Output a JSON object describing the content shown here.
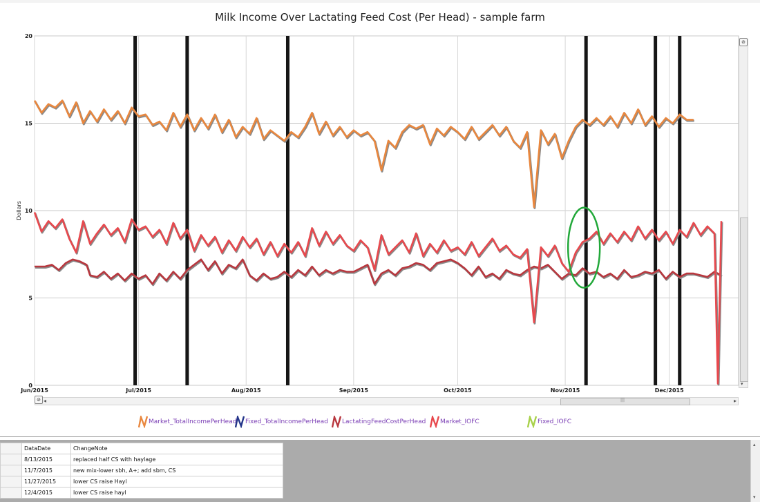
{
  "chart_data": {
    "type": "line",
    "title": "Milk Income Over Lactating Feed Cost (Per Head) - sample farm",
    "ylabel": "Dollars",
    "ylim": [
      0,
      20
    ],
    "yticks": [
      "0",
      "5",
      "10",
      "15",
      "20"
    ],
    "xlabels": [
      {
        "label": "Jun/2015",
        "day": 0
      },
      {
        "label": "Jul/2015",
        "day": 30
      },
      {
        "label": "Aug/2015",
        "day": 61
      },
      {
        "label": "Sep/2015",
        "day": 92
      },
      {
        "label": "Oct/2015",
        "day": 122
      },
      {
        "label": "Nov/2015",
        "day": 153
      },
      {
        "label": "Dec/2015",
        "day": 183
      }
    ],
    "x_end_day": 198,
    "grid": true,
    "change_markers": [
      "6/30/2015",
      "7/15/2015",
      "8/13/2015",
      "11/7/2015",
      "11/27/2015",
      "12/4/2015"
    ],
    "annotation": {
      "type": "ellipse",
      "color": "#22a83a",
      "center_day": 158,
      "center_value": 7.8,
      "note": "green circle around 11/7/2015"
    },
    "series": [
      {
        "name": "Market_TotalIncomePerHead",
        "color": "#e9873e",
        "shadow": "#8a8a8a",
        "points": [
          [
            0,
            16.3
          ],
          [
            2,
            15.6
          ],
          [
            4,
            16.1
          ],
          [
            6,
            15.9
          ],
          [
            8,
            16.3
          ],
          [
            10,
            15.4
          ],
          [
            12,
            16.2
          ],
          [
            14,
            15.0
          ],
          [
            16,
            15.7
          ],
          [
            18,
            15.1
          ],
          [
            20,
            15.8
          ],
          [
            22,
            15.2
          ],
          [
            24,
            15.7
          ],
          [
            26,
            15.0
          ],
          [
            28,
            15.9
          ],
          [
            30,
            15.4
          ],
          [
            32,
            15.5
          ],
          [
            34,
            14.9
          ],
          [
            36,
            15.1
          ],
          [
            38,
            14.6
          ],
          [
            40,
            15.6
          ],
          [
            42,
            14.8
          ],
          [
            44,
            15.5
          ],
          [
            46,
            14.6
          ],
          [
            48,
            15.3
          ],
          [
            50,
            14.7
          ],
          [
            52,
            15.5
          ],
          [
            54,
            14.5
          ],
          [
            56,
            15.2
          ],
          [
            58,
            14.2
          ],
          [
            60,
            14.8
          ],
          [
            62,
            14.4
          ],
          [
            64,
            15.3
          ],
          [
            66,
            14.1
          ],
          [
            68,
            14.6
          ],
          [
            70,
            14.3
          ],
          [
            72,
            14.0
          ],
          [
            74,
            14.5
          ],
          [
            76,
            14.2
          ],
          [
            78,
            14.8
          ],
          [
            80,
            15.6
          ],
          [
            82,
            14.4
          ],
          [
            84,
            15.1
          ],
          [
            86,
            14.3
          ],
          [
            88,
            14.8
          ],
          [
            90,
            14.2
          ],
          [
            92,
            14.6
          ],
          [
            94,
            14.3
          ],
          [
            96,
            14.5
          ],
          [
            98,
            14.0
          ],
          [
            100,
            12.3
          ],
          [
            102,
            14.0
          ],
          [
            104,
            13.6
          ],
          [
            106,
            14.5
          ],
          [
            108,
            14.9
          ],
          [
            110,
            14.7
          ],
          [
            112,
            14.9
          ],
          [
            114,
            13.8
          ],
          [
            116,
            14.7
          ],
          [
            118,
            14.3
          ],
          [
            120,
            14.8
          ],
          [
            122,
            14.5
          ],
          [
            124,
            14.1
          ],
          [
            126,
            14.8
          ],
          [
            128,
            14.1
          ],
          [
            130,
            14.5
          ],
          [
            132,
            14.9
          ],
          [
            134,
            14.3
          ],
          [
            136,
            14.8
          ],
          [
            138,
            14.0
          ],
          [
            140,
            13.6
          ],
          [
            142,
            14.5
          ],
          [
            144,
            10.2
          ],
          [
            146,
            14.6
          ],
          [
            148,
            13.8
          ],
          [
            150,
            14.4
          ],
          [
            152,
            13.0
          ],
          [
            154,
            14.0
          ],
          [
            156,
            14.8
          ],
          [
            158,
            15.2
          ],
          [
            160,
            14.9
          ],
          [
            162,
            15.3
          ],
          [
            164,
            14.9
          ],
          [
            166,
            15.4
          ],
          [
            168,
            14.8
          ],
          [
            170,
            15.6
          ],
          [
            172,
            15.0
          ],
          [
            174,
            15.8
          ],
          [
            176,
            14.9
          ],
          [
            178,
            15.4
          ],
          [
            180,
            14.8
          ],
          [
            182,
            15.3
          ],
          [
            184,
            15.0
          ],
          [
            186,
            15.5
          ],
          [
            188,
            15.2
          ],
          [
            190,
            15.2
          ]
        ]
      },
      {
        "name": "Fixed_TotalIncomePerHead",
        "color": "#24368a",
        "points": []
      },
      {
        "name": "LactatingFeedCostPerHead",
        "color": "#b8373e",
        "shadow": "#8a8a8a",
        "points": [
          [
            0,
            6.8
          ],
          [
            3,
            6.8
          ],
          [
            5,
            6.9
          ],
          [
            7,
            6.6
          ],
          [
            9,
            7.0
          ],
          [
            11,
            7.2
          ],
          [
            13,
            7.1
          ],
          [
            15,
            6.9
          ],
          [
            16,
            6.3
          ],
          [
            18,
            6.2
          ],
          [
            20,
            6.5
          ],
          [
            22,
            6.1
          ],
          [
            24,
            6.4
          ],
          [
            26,
            6.0
          ],
          [
            28,
            6.4
          ],
          [
            30,
            6.1
          ],
          [
            32,
            6.3
          ],
          [
            34,
            5.8
          ],
          [
            36,
            6.4
          ],
          [
            38,
            6.0
          ],
          [
            40,
            6.5
          ],
          [
            42,
            6.1
          ],
          [
            44,
            6.6
          ],
          [
            46,
            6.9
          ],
          [
            48,
            7.2
          ],
          [
            50,
            6.6
          ],
          [
            52,
            7.1
          ],
          [
            54,
            6.4
          ],
          [
            56,
            6.9
          ],
          [
            58,
            6.7
          ],
          [
            60,
            7.2
          ],
          [
            62,
            6.3
          ],
          [
            64,
            6.0
          ],
          [
            66,
            6.4
          ],
          [
            68,
            6.1
          ],
          [
            70,
            6.2
          ],
          [
            72,
            6.5
          ],
          [
            74,
            6.2
          ],
          [
            76,
            6.6
          ],
          [
            78,
            6.3
          ],
          [
            80,
            6.8
          ],
          [
            82,
            6.3
          ],
          [
            84,
            6.6
          ],
          [
            86,
            6.4
          ],
          [
            88,
            6.6
          ],
          [
            90,
            6.5
          ],
          [
            92,
            6.5
          ],
          [
            94,
            6.7
          ],
          [
            96,
            6.9
          ],
          [
            98,
            5.8
          ],
          [
            100,
            6.4
          ],
          [
            102,
            6.6
          ],
          [
            104,
            6.3
          ],
          [
            106,
            6.7
          ],
          [
            108,
            6.8
          ],
          [
            110,
            7.0
          ],
          [
            112,
            6.9
          ],
          [
            114,
            6.6
          ],
          [
            116,
            7.0
          ],
          [
            118,
            7.1
          ],
          [
            120,
            7.2
          ],
          [
            122,
            7.0
          ],
          [
            124,
            6.7
          ],
          [
            126,
            6.3
          ],
          [
            128,
            6.8
          ],
          [
            130,
            6.2
          ],
          [
            132,
            6.4
          ],
          [
            134,
            6.1
          ],
          [
            136,
            6.6
          ],
          [
            138,
            6.4
          ],
          [
            140,
            6.3
          ],
          [
            142,
            6.6
          ],
          [
            144,
            6.8
          ],
          [
            146,
            6.7
          ],
          [
            148,
            6.9
          ],
          [
            150,
            6.5
          ],
          [
            152,
            6.1
          ],
          [
            154,
            6.4
          ],
          [
            156,
            6.3
          ],
          [
            158,
            6.7
          ],
          [
            160,
            6.4
          ],
          [
            162,
            6.5
          ],
          [
            164,
            6.2
          ],
          [
            166,
            6.4
          ],
          [
            168,
            6.1
          ],
          [
            170,
            6.6
          ],
          [
            172,
            6.2
          ],
          [
            174,
            6.3
          ],
          [
            176,
            6.5
          ],
          [
            178,
            6.4
          ],
          [
            180,
            6.6
          ],
          [
            182,
            6.1
          ],
          [
            184,
            6.5
          ],
          [
            186,
            6.2
          ],
          [
            188,
            6.4
          ],
          [
            190,
            6.4
          ],
          [
            192,
            6.3
          ],
          [
            194,
            6.2
          ],
          [
            196,
            6.5
          ],
          [
            198,
            6.3
          ]
        ]
      },
      {
        "name": "Market_IOFC",
        "color": "#e8484d",
        "shadow": "#8a8a8a",
        "points": [
          [
            0,
            9.9
          ],
          [
            2,
            8.8
          ],
          [
            4,
            9.4
          ],
          [
            6,
            9.0
          ],
          [
            8,
            9.5
          ],
          [
            10,
            8.4
          ],
          [
            12,
            7.6
          ],
          [
            14,
            9.4
          ],
          [
            16,
            8.1
          ],
          [
            18,
            8.7
          ],
          [
            20,
            9.2
          ],
          [
            22,
            8.6
          ],
          [
            24,
            9.0
          ],
          [
            26,
            8.2
          ],
          [
            28,
            9.5
          ],
          [
            30,
            8.9
          ],
          [
            32,
            9.1
          ],
          [
            34,
            8.5
          ],
          [
            36,
            8.9
          ],
          [
            38,
            8.1
          ],
          [
            40,
            9.3
          ],
          [
            42,
            8.4
          ],
          [
            44,
            8.9
          ],
          [
            46,
            7.7
          ],
          [
            48,
            8.6
          ],
          [
            50,
            8.0
          ],
          [
            52,
            8.5
          ],
          [
            54,
            7.6
          ],
          [
            56,
            8.3
          ],
          [
            58,
            7.7
          ],
          [
            60,
            8.5
          ],
          [
            62,
            7.9
          ],
          [
            64,
            8.4
          ],
          [
            66,
            7.5
          ],
          [
            68,
            8.2
          ],
          [
            70,
            7.4
          ],
          [
            72,
            8.1
          ],
          [
            74,
            7.6
          ],
          [
            76,
            8.2
          ],
          [
            78,
            7.4
          ],
          [
            80,
            9.0
          ],
          [
            82,
            8.0
          ],
          [
            84,
            8.8
          ],
          [
            86,
            8.1
          ],
          [
            88,
            8.6
          ],
          [
            90,
            8.0
          ],
          [
            92,
            7.7
          ],
          [
            94,
            8.3
          ],
          [
            96,
            7.9
          ],
          [
            98,
            6.6
          ],
          [
            100,
            8.6
          ],
          [
            102,
            7.5
          ],
          [
            104,
            7.9
          ],
          [
            106,
            8.3
          ],
          [
            108,
            7.6
          ],
          [
            110,
            8.7
          ],
          [
            112,
            7.4
          ],
          [
            114,
            8.1
          ],
          [
            116,
            7.6
          ],
          [
            118,
            8.3
          ],
          [
            120,
            7.7
          ],
          [
            122,
            7.9
          ],
          [
            124,
            7.5
          ],
          [
            126,
            8.2
          ],
          [
            128,
            7.4
          ],
          [
            130,
            7.9
          ],
          [
            132,
            8.4
          ],
          [
            134,
            7.7
          ],
          [
            136,
            8.0
          ],
          [
            138,
            7.5
          ],
          [
            140,
            7.3
          ],
          [
            142,
            7.8
          ],
          [
            144,
            3.6
          ],
          [
            146,
            7.9
          ],
          [
            148,
            7.4
          ],
          [
            150,
            8.0
          ],
          [
            152,
            7.0
          ],
          [
            154,
            6.5
          ],
          [
            156,
            7.6
          ],
          [
            158,
            8.2
          ],
          [
            160,
            8.4
          ],
          [
            162,
            8.8
          ],
          [
            164,
            8.1
          ],
          [
            166,
            8.7
          ],
          [
            168,
            8.2
          ],
          [
            170,
            8.8
          ],
          [
            172,
            8.3
          ],
          [
            174,
            9.1
          ],
          [
            176,
            8.4
          ],
          [
            178,
            8.9
          ],
          [
            180,
            8.3
          ],
          [
            182,
            8.8
          ],
          [
            184,
            8.1
          ],
          [
            186,
            8.9
          ],
          [
            188,
            8.5
          ],
          [
            190,
            9.3
          ],
          [
            192,
            8.6
          ],
          [
            194,
            9.1
          ],
          [
            196,
            8.7
          ],
          [
            197,
            0.1
          ],
          [
            198,
            9.4
          ]
        ]
      },
      {
        "name": "Fixed_IOFC",
        "color": "#a8d14a",
        "points": []
      }
    ]
  },
  "scroll": {
    "left_arrow": "◂",
    "right_arrow": "▸",
    "up_arrow": "▴",
    "down_arrow": "▾",
    "grip": "|||",
    "zoom_reset": "⊘"
  },
  "grid": {
    "columns": [
      "DataDate",
      "ChangeNote"
    ],
    "rows": [
      {
        "date": "8/13/2015",
        "note": "replaced half CS with haylage"
      },
      {
        "date": "11/7/2015",
        "note": "new mix-lower sbh, A+; add sbm, CS"
      },
      {
        "date": "11/27/2015",
        "note": "lower CS raise Hayl"
      },
      {
        "date": "12/4/2015",
        "note": "lower CS raise hayl"
      }
    ]
  }
}
